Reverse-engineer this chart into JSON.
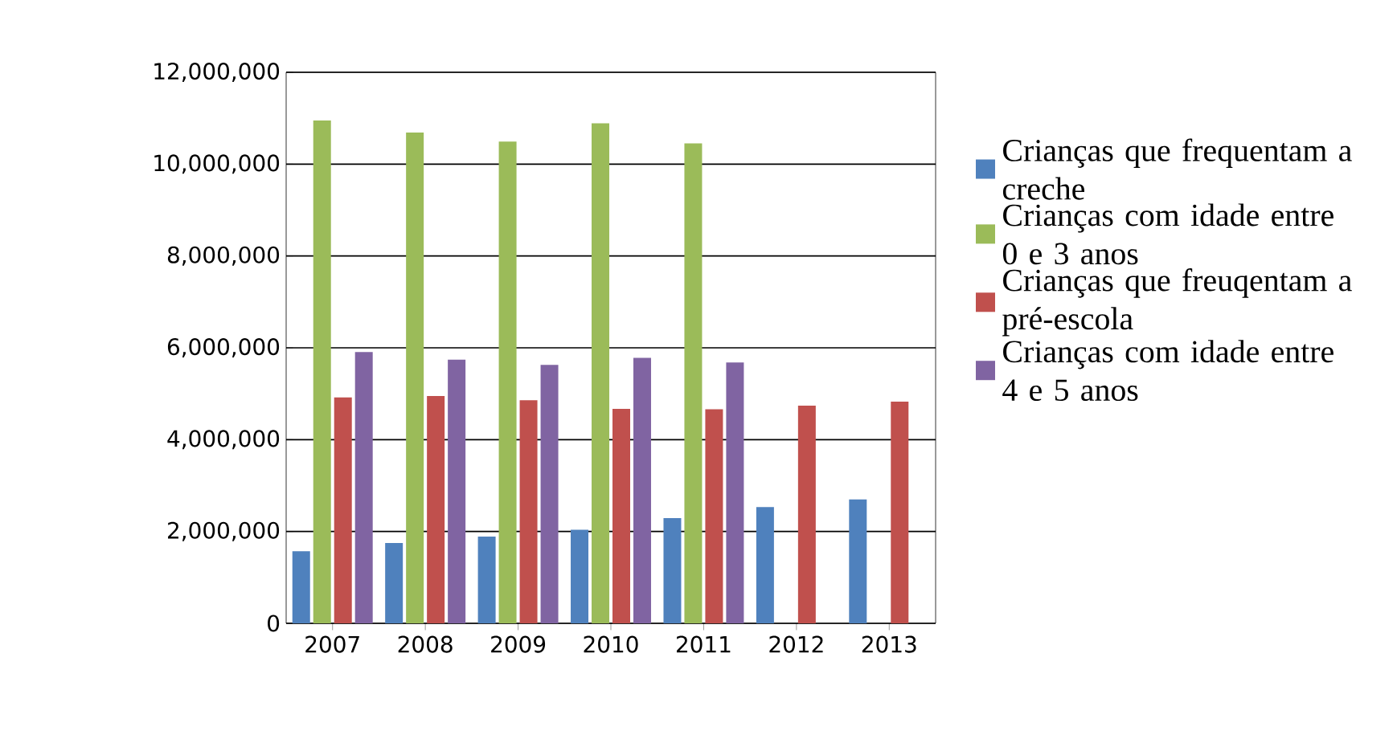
{
  "chart_data": {
    "type": "bar",
    "categories": [
      "2007",
      "2008",
      "2009",
      "2010",
      "2011",
      "2012",
      "2013"
    ],
    "series": [
      {
        "name": "Crianças que frequentam a creche",
        "color": "#4f81bd",
        "values": [
          1570000,
          1750000,
          1890000,
          2040000,
          2290000,
          2530000,
          2700000
        ]
      },
      {
        "name": "Crianças com idade entre 0 e 3 anos",
        "color": "#9bbb59",
        "values": [
          10950000,
          10690000,
          10490000,
          10890000,
          10450000,
          null,
          null
        ]
      },
      {
        "name": "Crianças que freuqentam a pré-escola",
        "color": "#c0504d",
        "values": [
          4920000,
          4950000,
          4860000,
          4670000,
          4660000,
          4740000,
          4830000
        ]
      },
      {
        "name": "Crianças com idade entre 4 e 5 anos",
        "color": "#8064a2",
        "values": [
          5910000,
          5740000,
          5630000,
          5780000,
          5680000,
          null,
          null
        ]
      }
    ],
    "ylim": [
      0,
      12000000
    ],
    "yticks": [
      {
        "value": 0,
        "label": "0"
      },
      {
        "value": 2000000,
        "label": "2,000,000"
      },
      {
        "value": 4000000,
        "label": "4,000,000"
      },
      {
        "value": 6000000,
        "label": "6,000,000"
      },
      {
        "value": 8000000,
        "label": "8,000,000"
      },
      {
        "value": 10000000,
        "label": "10,000,000"
      },
      {
        "value": 12000000,
        "label": "12,000,000"
      }
    ],
    "grid": "y",
    "legend": "right"
  }
}
